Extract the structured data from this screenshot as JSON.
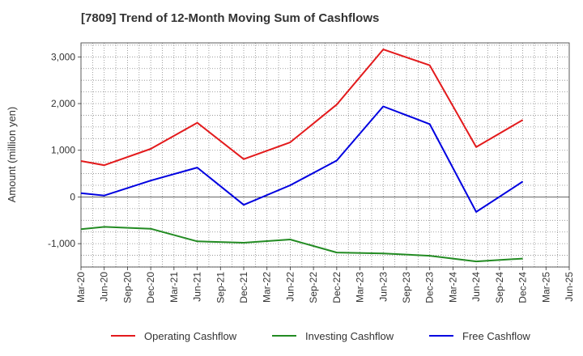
{
  "chart_data": {
    "type": "line",
    "title": "[7809]  Trend of 12-Month Moving Sum of Cashflows",
    "xlabel": "",
    "ylabel": "Amount (million yen)",
    "categories": [
      "Mar-20",
      "Jun-20",
      "Sep-20",
      "Dec-20",
      "Mar-21",
      "Jun-21",
      "Sep-21",
      "Dec-21",
      "Mar-22",
      "Jun-22",
      "Sep-22",
      "Dec-22",
      "Mar-23",
      "Jun-23",
      "Sep-23",
      "Dec-23",
      "Mar-24",
      "Jun-24",
      "Sep-24",
      "Dec-24",
      "Mar-25",
      "Jun-25"
    ],
    "ylim": [
      -1500,
      3300
    ],
    "yticks": [
      -1000,
      0,
      1000,
      2000,
      3000
    ],
    "ytick_labels": [
      "-1,000",
      "0",
      "1,000",
      "2,000",
      "3,000"
    ],
    "grid": true,
    "legend_position": "bottom",
    "series": [
      {
        "name": "Operating Cashflow",
        "color": "#e31a1c",
        "values": [
          770,
          680,
          null,
          1030,
          null,
          1590,
          null,
          810,
          null,
          1170,
          null,
          1980,
          null,
          3160,
          null,
          2820,
          null,
          1070,
          null,
          1650,
          null,
          null
        ]
      },
      {
        "name": "Investing Cashflow",
        "color": "#228b22",
        "values": [
          -690,
          -640,
          null,
          -680,
          null,
          -950,
          null,
          -980,
          null,
          -910,
          null,
          -1190,
          null,
          -1210,
          null,
          -1260,
          null,
          -1380,
          null,
          -1320,
          null,
          null
        ]
      },
      {
        "name": "Free Cashflow",
        "color": "#0000e0",
        "values": [
          80,
          30,
          null,
          350,
          null,
          630,
          null,
          -170,
          null,
          250,
          null,
          780,
          null,
          1940,
          null,
          1560,
          null,
          -320,
          null,
          330,
          null,
          null
        ]
      }
    ]
  }
}
